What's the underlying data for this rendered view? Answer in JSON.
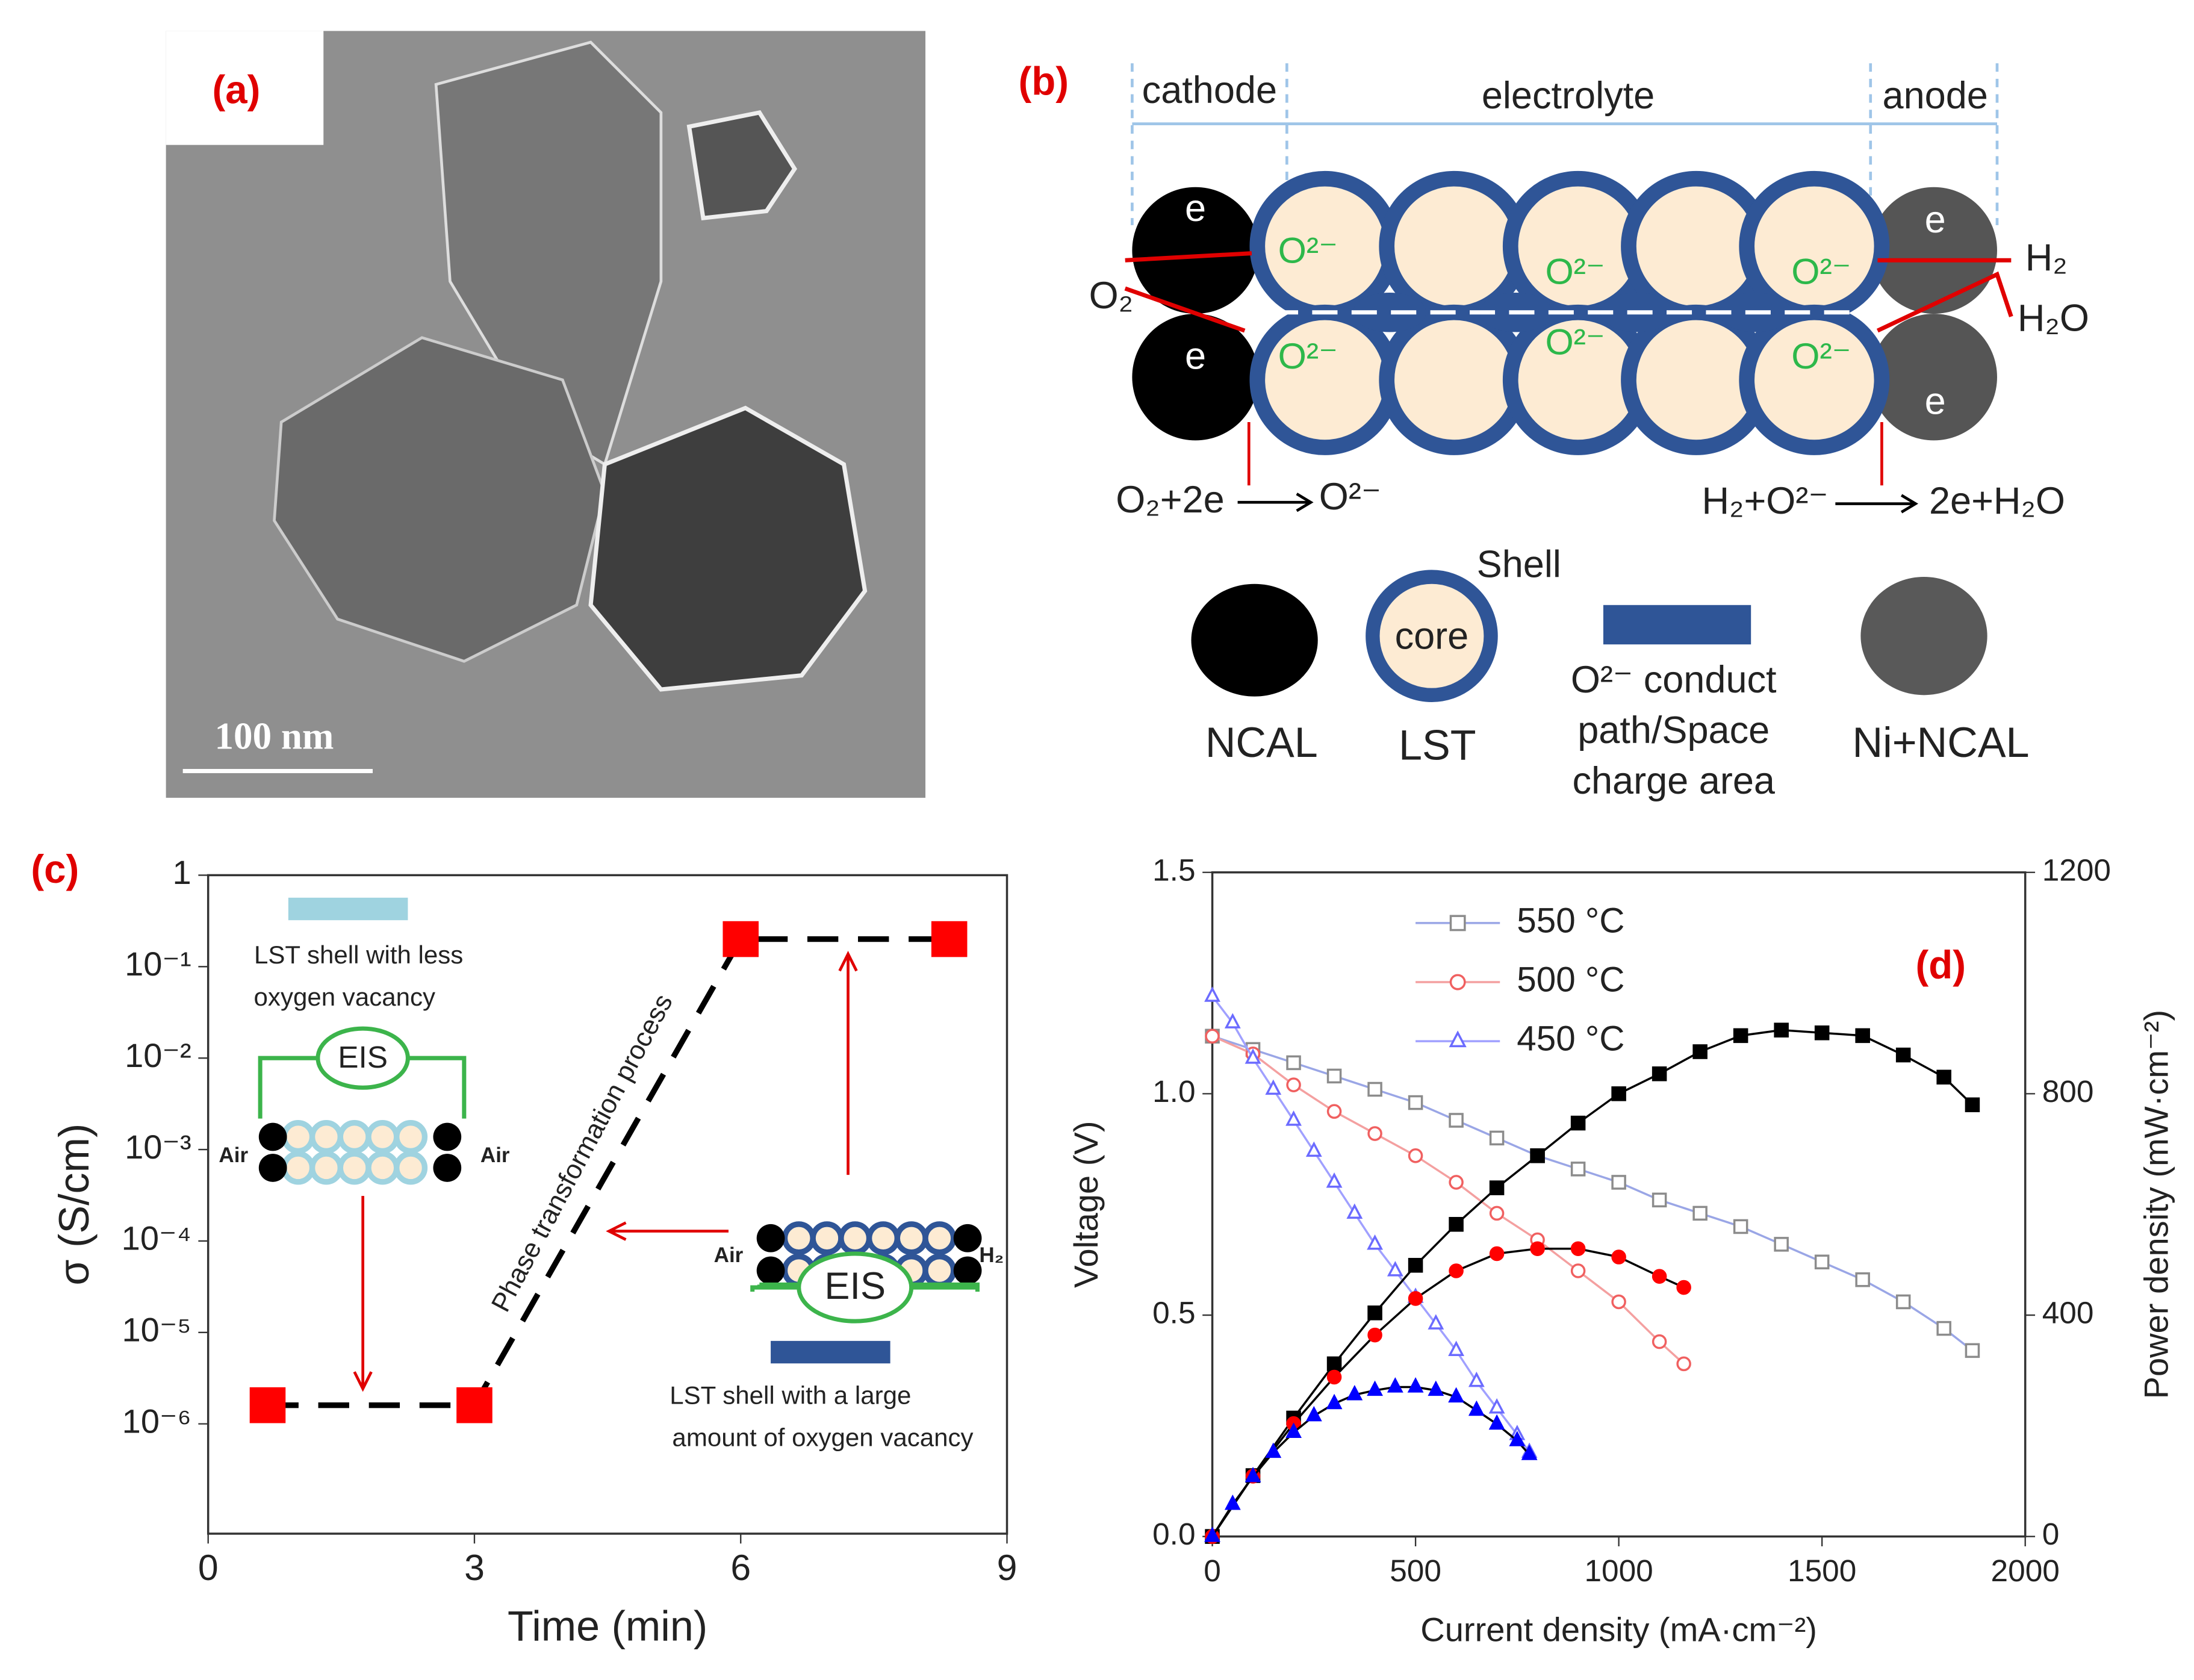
{
  "panel_a": {
    "label": "(a)",
    "scale_bar": "100 nm"
  },
  "panel_b": {
    "label": "(b)",
    "regions": [
      "cathode",
      "electrolyte",
      "anode"
    ],
    "electrons": [
      "e",
      "e",
      "e",
      "e"
    ],
    "ions": [
      "O²⁻",
      "O²⁻",
      "O²⁻",
      "O²⁻",
      "O²⁻",
      "O²⁻"
    ],
    "gases": [
      "O₂",
      "H₂",
      "H₂O"
    ],
    "cathode_reaction": [
      "O₂+2e",
      "O²⁻"
    ],
    "anode_reaction": [
      "H₂+O²⁻",
      "2e+H₂O"
    ],
    "legend": {
      "shell": "Shell",
      "core": "core",
      "path": [
        "O²⁻ conduct",
        "path/Space",
        "charge area"
      ],
      "ncal": "NCAL",
      "lst": "LST",
      "ni": "Ni+NCAL"
    }
  },
  "chart_data": [
    {
      "type": "line",
      "panel_label": "(c)",
      "xlabel": "Time (min)",
      "ylabel": "σ (S/cm)",
      "xlim": [
        0,
        9
      ],
      "xticks": [
        0,
        3,
        6,
        9
      ],
      "ylim": [
        6.3e-08,
        1
      ],
      "ylog": true,
      "yticks": [
        {
          "value": 1e-06,
          "label": "10⁻⁶"
        },
        {
          "value": 1e-05,
          "label": "10⁻⁵"
        },
        {
          "value": 0.0001,
          "label": "10⁻⁴"
        },
        {
          "value": 0.001,
          "label": "10⁻³"
        },
        {
          "value": 0.01,
          "label": "10⁻²"
        },
        {
          "value": 0.1,
          "label": "10⁻¹"
        },
        1
      ],
      "series": [
        {
          "x": [
            0.67,
            3,
            6,
            8.35
          ],
          "values": [
            1.6e-06,
            1.6e-06,
            0.2,
            0.2
          ],
          "color": "#ff0000",
          "line_color": "#000000",
          "dashed": true,
          "marker": "square",
          "filled": true
        }
      ],
      "annotations": [
        "LST shell with less",
        "oxygen vacancy",
        "EIS",
        "Air",
        "Air",
        "Phase transformation process",
        "Air",
        "H₂",
        "EIS",
        "LST shell with a large",
        "amount of oxygen vacancy"
      ]
    },
    {
      "type": "line",
      "panel_label": "(d)",
      "xlabel": "Current density (mA·cm⁻²)",
      "ylabel": "Voltage (V)",
      "y2label": "Power density (mW·cm⁻²)",
      "xlim": [
        0,
        2000
      ],
      "xticks": [
        0,
        500,
        1000,
        1500,
        2000
      ],
      "ylim": [
        0,
        1.5
      ],
      "yticks": [
        {
          "value": 0,
          "label": "0.0"
        },
        0.5,
        {
          "value": 1,
          "label": "1.0"
        },
        1.5
      ],
      "y2lim": [
        0,
        1200
      ],
      "y2ticks": [
        0,
        400,
        800,
        1200
      ],
      "legend": "upper center",
      "series": [
        {
          "name": "550 °C",
          "color": "#8c8c8c",
          "line_color": "#9aa6e6",
          "marker": "square",
          "filled": false,
          "x": [
            0,
            100,
            200,
            300,
            400,
            500,
            600,
            700,
            800,
            900,
            1000,
            1100,
            1200,
            1300,
            1400,
            1500,
            1600,
            1700,
            1800,
            1870
          ],
          "values": [
            1.13,
            1.1,
            1.07,
            1.04,
            1.01,
            0.98,
            0.94,
            0.9,
            0.86,
            0.83,
            0.8,
            0.76,
            0.73,
            0.7,
            0.66,
            0.62,
            0.58,
            0.53,
            0.47,
            0.42
          ]
        },
        {
          "name": "500 °C",
          "color": "#f06060",
          "line_color": "#f4a0a0",
          "marker": "circle",
          "filled": false,
          "x": [
            0,
            100,
            200,
            300,
            400,
            500,
            600,
            700,
            800,
            900,
            1000,
            1100,
            1160
          ],
          "values": [
            1.13,
            1.09,
            1.02,
            0.96,
            0.91,
            0.86,
            0.8,
            0.73,
            0.67,
            0.6,
            0.53,
            0.44,
            0.39
          ]
        },
        {
          "name": "450 °C",
          "color": "#6b6bff",
          "line_color": "#a0a0ff",
          "marker": "triangle",
          "filled": false,
          "x": [
            0,
            50,
            100,
            150,
            200,
            250,
            300,
            350,
            400,
            450,
            500,
            550,
            600,
            650,
            700,
            750,
            780
          ],
          "values": [
            1.22,
            1.16,
            1.08,
            1.01,
            0.94,
            0.87,
            0.8,
            0.73,
            0.66,
            0.6,
            0.54,
            0.48,
            0.42,
            0.35,
            0.29,
            0.23,
            0.19
          ]
        },
        {
          "axis": "y2",
          "color": "#000000",
          "line_color": "#000000",
          "marker": "square",
          "filled": true,
          "x": [
            0,
            100,
            200,
            300,
            400,
            500,
            600,
            700,
            800,
            900,
            1000,
            1100,
            1200,
            1300,
            1400,
            1500,
            1600,
            1700,
            1800,
            1870
          ],
          "values": [
            0,
            110,
            214,
            312,
            404,
            490,
            564,
            630,
            688,
            747,
            800,
            836,
            876,
            905,
            915,
            910,
            905,
            870,
            830,
            780
          ]
        },
        {
          "axis": "y2",
          "color": "#ff0000",
          "line_color": "#000000",
          "marker": "circle",
          "filled": true,
          "x": [
            0,
            100,
            200,
            300,
            400,
            500,
            600,
            700,
            800,
            900,
            1000,
            1100,
            1160
          ],
          "values": [
            0,
            109,
            204,
            288,
            364,
            430,
            480,
            511,
            520,
            520,
            505,
            470,
            450
          ]
        },
        {
          "axis": "y2",
          "color": "#0000ff",
          "line_color": "#000000",
          "marker": "triangle",
          "filled": true,
          "x": [
            0,
            50,
            100,
            150,
            200,
            250,
            300,
            350,
            400,
            450,
            500,
            550,
            600,
            650,
            700,
            750,
            780
          ],
          "values": [
            0,
            58,
            108,
            152,
            188,
            218,
            240,
            256,
            264,
            270,
            270,
            264,
            252,
            228,
            203,
            173,
            148
          ]
        }
      ]
    }
  ]
}
